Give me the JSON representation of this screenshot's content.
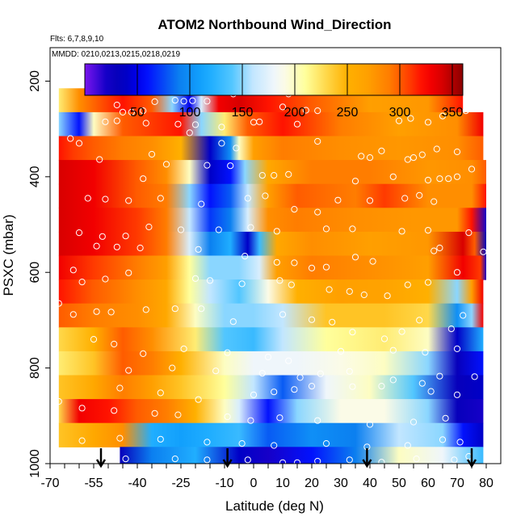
{
  "chart_data": {
    "type": "heatmap",
    "title": "ATOM2 Northbound Wind_Direction",
    "subtitle_flights": "Flts: 6,7,8,9,10",
    "subtitle_dates": "MMDD: 0210,0213,0215,0218,0219",
    "xlabel": "Latitude (deg N)",
    "ylabel": "PSXC (mbar)",
    "xlim": [
      -70,
      85
    ],
    "ylim": [
      1000,
      130
    ],
    "y_reversed": true,
    "x_ticks": [
      "-70",
      "-55",
      "-40",
      "-25",
      "-10",
      "0",
      "10",
      "20",
      "30",
      "40",
      "50",
      "60",
      "70",
      "80"
    ],
    "x_tick_values": [
      -70,
      -55,
      -40,
      -25,
      -10,
      0,
      10,
      20,
      30,
      40,
      50,
      60,
      70,
      80
    ],
    "x_minor_ticks": [
      -65,
      -60,
      -50,
      -45,
      -35,
      -30,
      -20,
      -15,
      -5,
      5,
      15,
      25,
      35,
      45,
      55,
      65,
      75
    ],
    "y_ticks": [
      "200",
      "400",
      "600",
      "800",
      "1000"
    ],
    "y_tick_values": [
      200,
      400,
      600,
      800,
      1000
    ],
    "colorbar": {
      "range": [
        0,
        360
      ],
      "ticks": [
        "50",
        "100",
        "150",
        "200",
        "250",
        "300",
        "350"
      ],
      "tick_values": [
        50,
        100,
        150,
        200,
        250,
        300,
        350
      ]
    },
    "arrow_markers_lat": [
      -52.5,
      -9,
      39,
      75
    ],
    "bands": [
      {
        "p_top": 165,
        "p_bot": 215,
        "lat_start": -56,
        "lat_end": 38,
        "x": [
          -56,
          0,
          38
        ],
        "v": [
          340,
          338,
          335
        ]
      },
      {
        "p_top": 215,
        "p_bot": 265,
        "lat_start": -67,
        "lat_end": 72,
        "x": [
          -67,
          -60,
          -45,
          -35,
          -28,
          -22,
          -18,
          -12,
          -5,
          5,
          20,
          40,
          60,
          72
        ],
        "v": [
          220,
          280,
          320,
          300,
          150,
          50,
          170,
          330,
          340,
          320,
          300,
          270,
          275,
          320
        ]
      },
      {
        "p_top": 265,
        "p_bot": 315,
        "lat_start": -67,
        "lat_end": 79,
        "x": [
          -67,
          -60,
          -55,
          -45,
          -35,
          -25,
          -18,
          -10,
          -2,
          10,
          30,
          50,
          70,
          79
        ],
        "v": [
          150,
          60,
          200,
          300,
          310,
          320,
          150,
          220,
          300,
          320,
          290,
          270,
          280,
          330
        ]
      },
      {
        "p_top": 315,
        "p_bot": 365,
        "lat_start": -67,
        "lat_end": 79,
        "x": [
          -67,
          -62,
          -55,
          -45,
          -35,
          -25,
          -15,
          -8,
          -5,
          0,
          10,
          30,
          50,
          70,
          79
        ],
        "v": [
          320,
          310,
          300,
          290,
          280,
          250,
          40,
          100,
          200,
          270,
          290,
          280,
          275,
          280,
          300
        ]
      },
      {
        "p_top": 365,
        "p_bot": 415,
        "lat_start": -67,
        "lat_end": 80,
        "x": [
          -67,
          -55,
          -40,
          -30,
          -22,
          -15,
          -8,
          -3,
          5,
          20,
          40,
          60,
          75,
          80
        ],
        "v": [
          340,
          330,
          300,
          280,
          200,
          40,
          60,
          150,
          260,
          290,
          290,
          275,
          280,
          300
        ]
      },
      {
        "p_top": 415,
        "p_bot": 465,
        "lat_start": -67,
        "lat_end": 80,
        "x": [
          -67,
          -55,
          -40,
          -30,
          -22,
          -15,
          -8,
          -2,
          5,
          15,
          35,
          45,
          60,
          75,
          80
        ],
        "v": [
          340,
          330,
          300,
          290,
          150,
          60,
          80,
          160,
          270,
          300,
          290,
          310,
          280,
          280,
          320
        ]
      },
      {
        "p_top": 465,
        "p_bot": 515,
        "lat_start": -67,
        "lat_end": 80,
        "x": [
          -67,
          -55,
          -40,
          -30,
          -22,
          -15,
          -8,
          -2,
          5,
          15,
          35,
          55,
          70,
          75,
          80
        ],
        "v": [
          340,
          330,
          310,
          290,
          160,
          70,
          90,
          170,
          280,
          290,
          280,
          275,
          275,
          320,
          20
        ]
      },
      {
        "p_top": 515,
        "p_bot": 565,
        "lat_start": -67,
        "lat_end": 80,
        "x": [
          -67,
          -55,
          -40,
          -30,
          -22,
          -15,
          -8,
          -2,
          2,
          8,
          20,
          40,
          60,
          72,
          76,
          80
        ],
        "v": [
          340,
          330,
          310,
          290,
          170,
          90,
          120,
          40,
          130,
          260,
          280,
          270,
          275,
          340,
          300,
          30
        ]
      },
      {
        "p_top": 565,
        "p_bot": 615,
        "lat_start": -67,
        "lat_end": 80,
        "x": [
          -67,
          -55,
          -40,
          -30,
          -22,
          -15,
          -5,
          2,
          8,
          20,
          40,
          60,
          72,
          78,
          80
        ],
        "v": [
          330,
          310,
          290,
          270,
          210,
          150,
          150,
          170,
          270,
          290,
          280,
          270,
          330,
          310,
          20
        ]
      },
      {
        "p_top": 615,
        "p_bot": 665,
        "lat_start": -67,
        "lat_end": 79,
        "x": [
          -67,
          -55,
          -40,
          -30,
          -22,
          -15,
          -5,
          5,
          15,
          30,
          45,
          60,
          70,
          75,
          79
        ],
        "v": [
          320,
          300,
          280,
          260,
          210,
          160,
          140,
          190,
          250,
          270,
          265,
          250,
          150,
          270,
          330
        ]
      },
      {
        "p_top": 665,
        "p_bot": 715,
        "lat_start": -67,
        "lat_end": 79,
        "x": [
          -67,
          -55,
          -40,
          -30,
          -20,
          -10,
          0,
          10,
          25,
          45,
          60,
          70,
          75,
          79
        ],
        "v": [
          300,
          290,
          280,
          260,
          200,
          150,
          150,
          160,
          240,
          240,
          230,
          100,
          150,
          330
        ]
      },
      {
        "p_top": 715,
        "p_bot": 765,
        "lat_start": -67,
        "lat_end": 79,
        "x": [
          -67,
          -55,
          -45,
          -35,
          -20,
          -10,
          0,
          10,
          25,
          45,
          60,
          70,
          79
        ],
        "v": [
          230,
          250,
          300,
          280,
          220,
          140,
          130,
          160,
          210,
          220,
          200,
          40,
          120
        ]
      },
      {
        "p_top": 765,
        "p_bot": 815,
        "lat_start": -67,
        "lat_end": 79,
        "x": [
          -67,
          -55,
          -45,
          -35,
          -25,
          -10,
          0,
          15,
          30,
          45,
          60,
          70,
          79
        ],
        "v": [
          220,
          240,
          300,
          290,
          250,
          200,
          180,
          180,
          190,
          200,
          150,
          30,
          60
        ]
      },
      {
        "p_top": 815,
        "p_bot": 865,
        "lat_start": -67,
        "lat_end": 79,
        "x": [
          -67,
          -55,
          -45,
          -35,
          -25,
          -10,
          0,
          10,
          25,
          40,
          55,
          70,
          79
        ],
        "v": [
          240,
          260,
          290,
          270,
          240,
          210,
          160,
          80,
          180,
          200,
          140,
          30,
          40
        ]
      },
      {
        "p_top": 865,
        "p_bot": 915,
        "lat_start": -67,
        "lat_end": 79,
        "x": [
          -67,
          -60,
          -50,
          -40,
          -30,
          -20,
          -10,
          -5,
          5,
          15,
          30,
          45,
          60,
          70,
          79
        ],
        "v": [
          230,
          330,
          320,
          300,
          290,
          250,
          200,
          170,
          60,
          150,
          190,
          190,
          150,
          30,
          20
        ]
      },
      {
        "p_top": 915,
        "p_bot": 965,
        "lat_start": -67,
        "lat_end": 79,
        "x": [
          -67,
          -55,
          -45,
          -35,
          -25,
          -15,
          -5,
          5,
          20,
          35,
          50,
          65,
          72,
          79
        ],
        "v": [
          240,
          260,
          280,
          120,
          110,
          120,
          130,
          80,
          100,
          90,
          160,
          150,
          60,
          40
        ]
      },
      {
        "p_top": 965,
        "p_bot": 1005,
        "lat_start": -46,
        "lat_end": 79,
        "x": [
          -46,
          -35,
          -20,
          -5,
          5,
          20,
          35,
          50,
          65,
          79
        ],
        "v": [
          30,
          90,
          120,
          40,
          20,
          60,
          90,
          200,
          180,
          130
        ]
      }
    ],
    "points": [
      [
        -58,
        193
      ],
      [
        -52,
        190
      ],
      [
        -47,
        250
      ],
      [
        -45,
        265
      ],
      [
        -42,
        265
      ],
      [
        -38,
        262
      ],
      [
        -34,
        243
      ],
      [
        -27,
        240
      ],
      [
        -24,
        242
      ],
      [
        -21,
        241
      ],
      [
        -16,
        242
      ],
      [
        -7,
        227
      ],
      [
        12,
        227
      ],
      [
        32,
        205
      ],
      [
        38,
        192
      ],
      [
        -51,
        285
      ],
      [
        -47,
        283
      ],
      [
        -37,
        288
      ],
      [
        -26,
        290
      ],
      [
        -20,
        291
      ],
      [
        -11,
        296
      ],
      [
        0,
        286
      ],
      [
        2,
        285
      ],
      [
        10,
        254
      ],
      [
        15,
        290
      ],
      [
        18,
        261
      ],
      [
        22,
        262
      ],
      [
        50,
        283
      ],
      [
        54,
        278
      ],
      [
        60,
        286
      ],
      [
        65,
        273
      ],
      [
        73,
        262
      ],
      [
        -63,
        320
      ],
      [
        -60,
        330
      ],
      [
        -53,
        364
      ],
      [
        -35,
        353
      ],
      [
        -22,
        308
      ],
      [
        -11,
        330
      ],
      [
        -6,
        340
      ],
      [
        22,
        326
      ],
      [
        37,
        357
      ],
      [
        40,
        360
      ],
      [
        44,
        346
      ],
      [
        53,
        364
      ],
      [
        55,
        360
      ],
      [
        58,
        354
      ],
      [
        63,
        342
      ],
      [
        70,
        348
      ],
      [
        -74,
        399
      ],
      [
        -38,
        404
      ],
      [
        -30,
        374
      ],
      [
        -16,
        376
      ],
      [
        -8,
        377
      ],
      [
        3,
        397
      ],
      [
        7,
        397
      ],
      [
        12,
        395
      ],
      [
        35,
        409
      ],
      [
        48,
        400
      ],
      [
        60,
        407
      ],
      [
        64,
        404
      ],
      [
        67,
        404
      ],
      [
        70,
        400
      ],
      [
        75,
        384
      ],
      [
        -57,
        445
      ],
      [
        -51,
        447
      ],
      [
        -43,
        450
      ],
      [
        -32,
        445
      ],
      [
        -18,
        457
      ],
      [
        -2,
        445
      ],
      [
        4,
        440
      ],
      [
        14,
        468
      ],
      [
        22,
        474
      ],
      [
        29,
        449
      ],
      [
        40,
        450
      ],
      [
        52,
        445
      ],
      [
        57,
        439
      ],
      [
        62,
        452
      ],
      [
        -60,
        517
      ],
      [
        -52,
        525
      ],
      [
        -44,
        524
      ],
      [
        -36,
        505
      ],
      [
        -25,
        511
      ],
      [
        -12,
        511
      ],
      [
        -1,
        506
      ],
      [
        8,
        514
      ],
      [
        25,
        509
      ],
      [
        34,
        509
      ],
      [
        51,
        514
      ],
      [
        60,
        512
      ],
      [
        74,
        517
      ],
      [
        -54,
        545
      ],
      [
        -47,
        547
      ],
      [
        -39,
        549
      ],
      [
        -19,
        552
      ],
      [
        -3,
        566
      ],
      [
        8,
        579
      ],
      [
        14,
        580
      ],
      [
        20,
        591
      ],
      [
        25,
        589
      ],
      [
        35,
        568
      ],
      [
        41,
        577
      ],
      [
        62,
        555
      ],
      [
        64,
        549
      ],
      [
        79,
        557
      ],
      [
        -62,
        595
      ],
      [
        -59,
        620
      ],
      [
        -51,
        614
      ],
      [
        -43,
        601
      ],
      [
        -20,
        613
      ],
      [
        -15,
        617
      ],
      [
        -4,
        624
      ],
      [
        9,
        617
      ],
      [
        13,
        626
      ],
      [
        26,
        636
      ],
      [
        33,
        640
      ],
      [
        38,
        647
      ],
      [
        46,
        649
      ],
      [
        53,
        626
      ],
      [
        60,
        621
      ],
      [
        70,
        600
      ],
      [
        -67,
        665
      ],
      [
        -62,
        688
      ],
      [
        -54,
        682
      ],
      [
        -49,
        683
      ],
      [
        -37,
        678
      ],
      [
        -27,
        676
      ],
      [
        -18,
        676
      ],
      [
        -7,
        703
      ],
      [
        10,
        688
      ],
      [
        20,
        699
      ],
      [
        27,
        704
      ],
      [
        34,
        725
      ],
      [
        45,
        739
      ],
      [
        51,
        724
      ],
      [
        57,
        700
      ],
      [
        68,
        718
      ],
      [
        72,
        690
      ],
      [
        -55,
        740
      ],
      [
        -48,
        750
      ],
      [
        -38,
        770
      ],
      [
        -24,
        760
      ],
      [
        -9,
        768
      ],
      [
        5,
        777
      ],
      [
        12,
        785
      ],
      [
        30,
        765
      ],
      [
        48,
        763
      ],
      [
        59,
        767
      ],
      [
        70,
        760
      ],
      [
        -43,
        805
      ],
      [
        -28,
        800
      ],
      [
        -13,
        806
      ],
      [
        3,
        811
      ],
      [
        16,
        820
      ],
      [
        23,
        812
      ],
      [
        33,
        807
      ],
      [
        48,
        825
      ],
      [
        58,
        832
      ],
      [
        64,
        817
      ],
      [
        76,
        818
      ],
      [
        -46,
        842
      ],
      [
        -32,
        852
      ],
      [
        -19,
        866
      ],
      [
        0,
        856
      ],
      [
        7,
        850
      ],
      [
        14,
        845
      ],
      [
        20,
        838
      ],
      [
        34,
        839
      ],
      [
        44,
        838
      ],
      [
        61,
        849
      ],
      [
        70,
        856
      ],
      [
        -67,
        870
      ],
      [
        -59,
        884
      ],
      [
        -48,
        889
      ],
      [
        -34,
        895
      ],
      [
        -26,
        898
      ],
      [
        -9,
        902
      ],
      [
        -1,
        910
      ],
      [
        9,
        904
      ],
      [
        22,
        910
      ],
      [
        40,
        918
      ],
      [
        55,
        913
      ],
      [
        66,
        905
      ],
      [
        -59,
        952
      ],
      [
        -46,
        947
      ],
      [
        -32,
        949
      ],
      [
        -16,
        955
      ],
      [
        -4,
        958
      ],
      [
        7,
        962
      ],
      [
        25,
        958
      ],
      [
        39,
        965
      ],
      [
        53,
        962
      ],
      [
        65,
        950
      ],
      [
        71,
        955
      ],
      [
        -44,
        990
      ],
      [
        -27,
        990
      ],
      [
        -16,
        992
      ],
      [
        -2,
        992
      ],
      [
        10,
        998
      ],
      [
        15,
        998
      ],
      [
        22,
        995
      ],
      [
        33,
        992
      ],
      [
        44,
        997
      ],
      [
        56,
        990
      ],
      [
        69,
        992
      ],
      [
        74,
        985
      ]
    ]
  }
}
